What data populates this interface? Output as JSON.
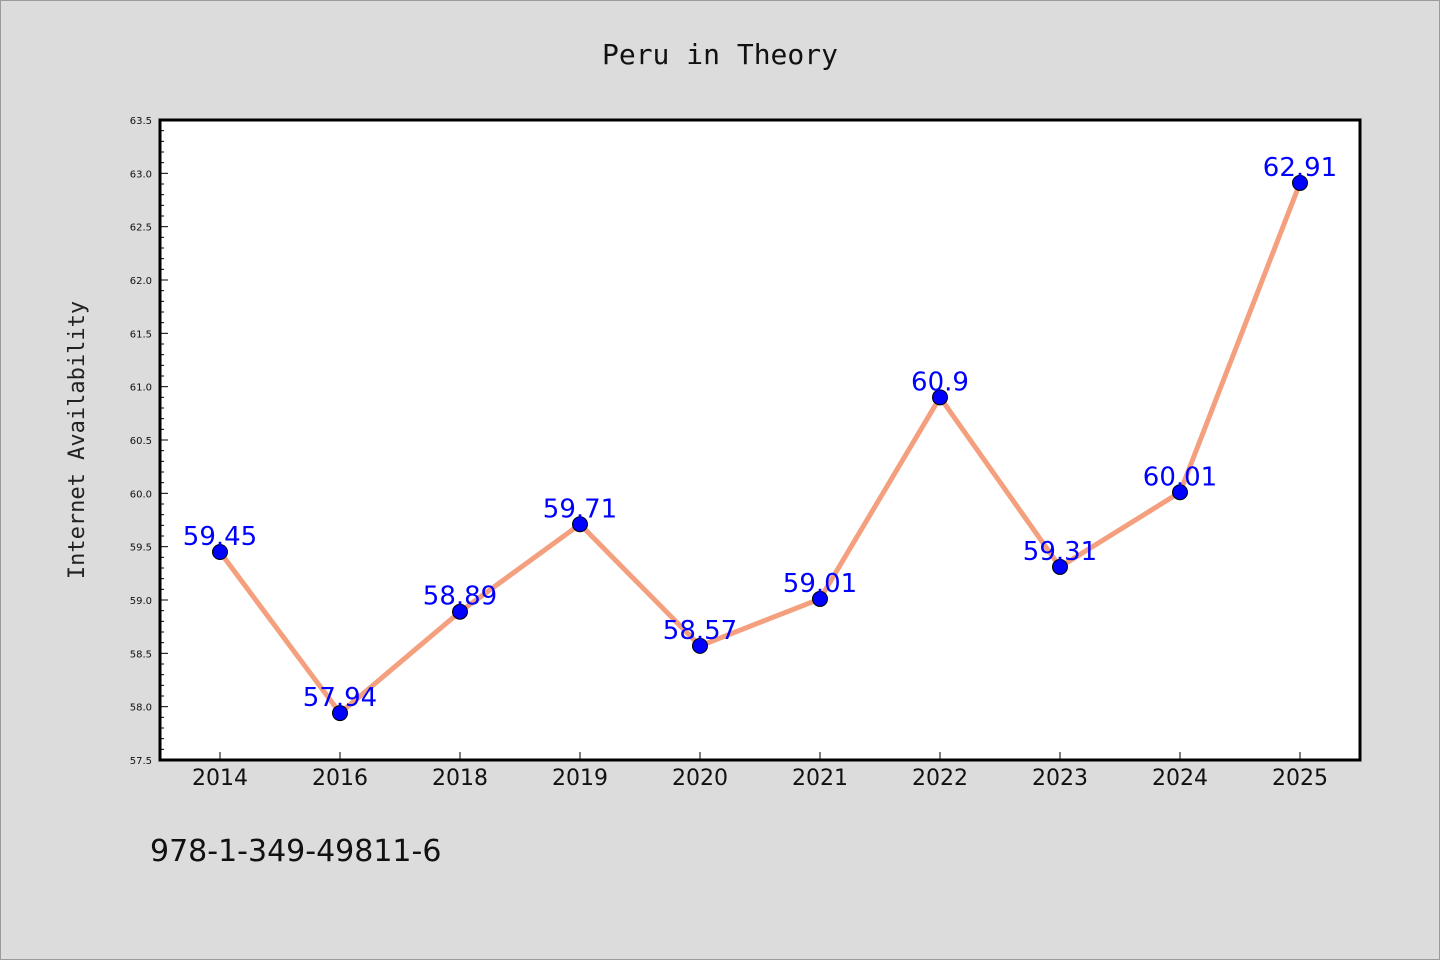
{
  "colors": {
    "background": "#dcdcdc",
    "plot_bg": "#ffffff",
    "line": "#f4a07e",
    "marker": "#0000ff",
    "label": "#0000ff"
  },
  "footer": {
    "code": "978-1-349-49811-6"
  },
  "chart_data": {
    "type": "line",
    "title": "Peru in Theory",
    "xlabel": "",
    "ylabel": "Internet Availability",
    "categories": [
      "2014",
      "2016",
      "2018",
      "2019",
      "2020",
      "2021",
      "2022",
      "2023",
      "2024",
      "2025"
    ],
    "series": [
      {
        "values": [
          59.45,
          57.94,
          58.89,
          59.71,
          58.57,
          59.01,
          60.9,
          59.31,
          60.01,
          62.91
        ]
      }
    ],
    "data_labels": [
      "59.45",
      "57.94",
      "58.89",
      "59.71",
      "58.57",
      "59.01",
      "60.9",
      "59.31",
      "60.01",
      "62.91"
    ],
    "ylim": [
      57.5,
      63.5
    ],
    "yticks": [
      "57.5",
      "58.0",
      "58.5",
      "59.0",
      "59.5",
      "60.0",
      "60.5",
      "61.0",
      "61.5",
      "62.0",
      "62.5",
      "63.0",
      "63.5"
    ],
    "grid": false,
    "legend": "none"
  }
}
